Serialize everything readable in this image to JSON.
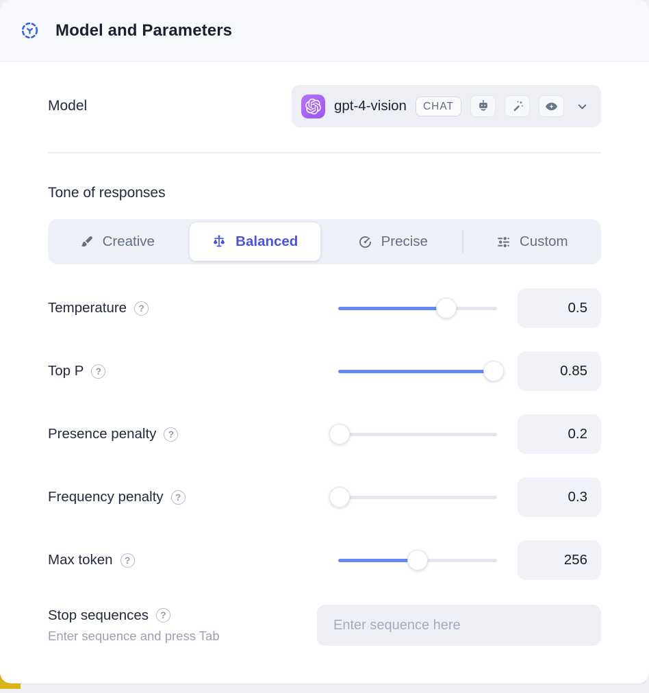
{
  "header": {
    "title": "Model and Parameters",
    "icon": "model-parameters-icon"
  },
  "model": {
    "label": "Model",
    "name": "gpt-4-vision",
    "type_badge": "CHAT",
    "provider_icon": "openai-logo-icon",
    "capability_icons": [
      "robot-icon",
      "magic-wand-icon",
      "vision-eye-icon"
    ]
  },
  "tone": {
    "label": "Tone of responses",
    "options": [
      {
        "label": "Creative",
        "icon": "paintbrush-icon",
        "selected": false
      },
      {
        "label": "Balanced",
        "icon": "balance-scale-icon",
        "selected": true
      },
      {
        "label": "Precise",
        "icon": "target-arrow-icon",
        "selected": false
      },
      {
        "label": "Custom",
        "icon": "sliders-icon",
        "selected": false
      }
    ]
  },
  "parameters": [
    {
      "label": "Temperature",
      "value": "0.5",
      "slider_percent": 68
    },
    {
      "label": "Top P",
      "value": "0.85",
      "slider_percent": 98
    },
    {
      "label": "Presence penalty",
      "value": "0.2",
      "slider_percent": 1
    },
    {
      "label": "Frequency penalty",
      "value": "0.3",
      "slider_percent": 1
    },
    {
      "label": "Max token",
      "value": "256",
      "slider_percent": 50
    }
  ],
  "stop_sequences": {
    "label": "Stop sequences",
    "hint": "Enter sequence and press Tab",
    "placeholder": "Enter sequence here"
  },
  "colors": {
    "accent_blue": "#6387f3",
    "selected_indigo": "#4a53e3",
    "provider_purple": "#a262f0",
    "header_bg": "#f8f9fc",
    "field_bg": "#edeff4"
  }
}
